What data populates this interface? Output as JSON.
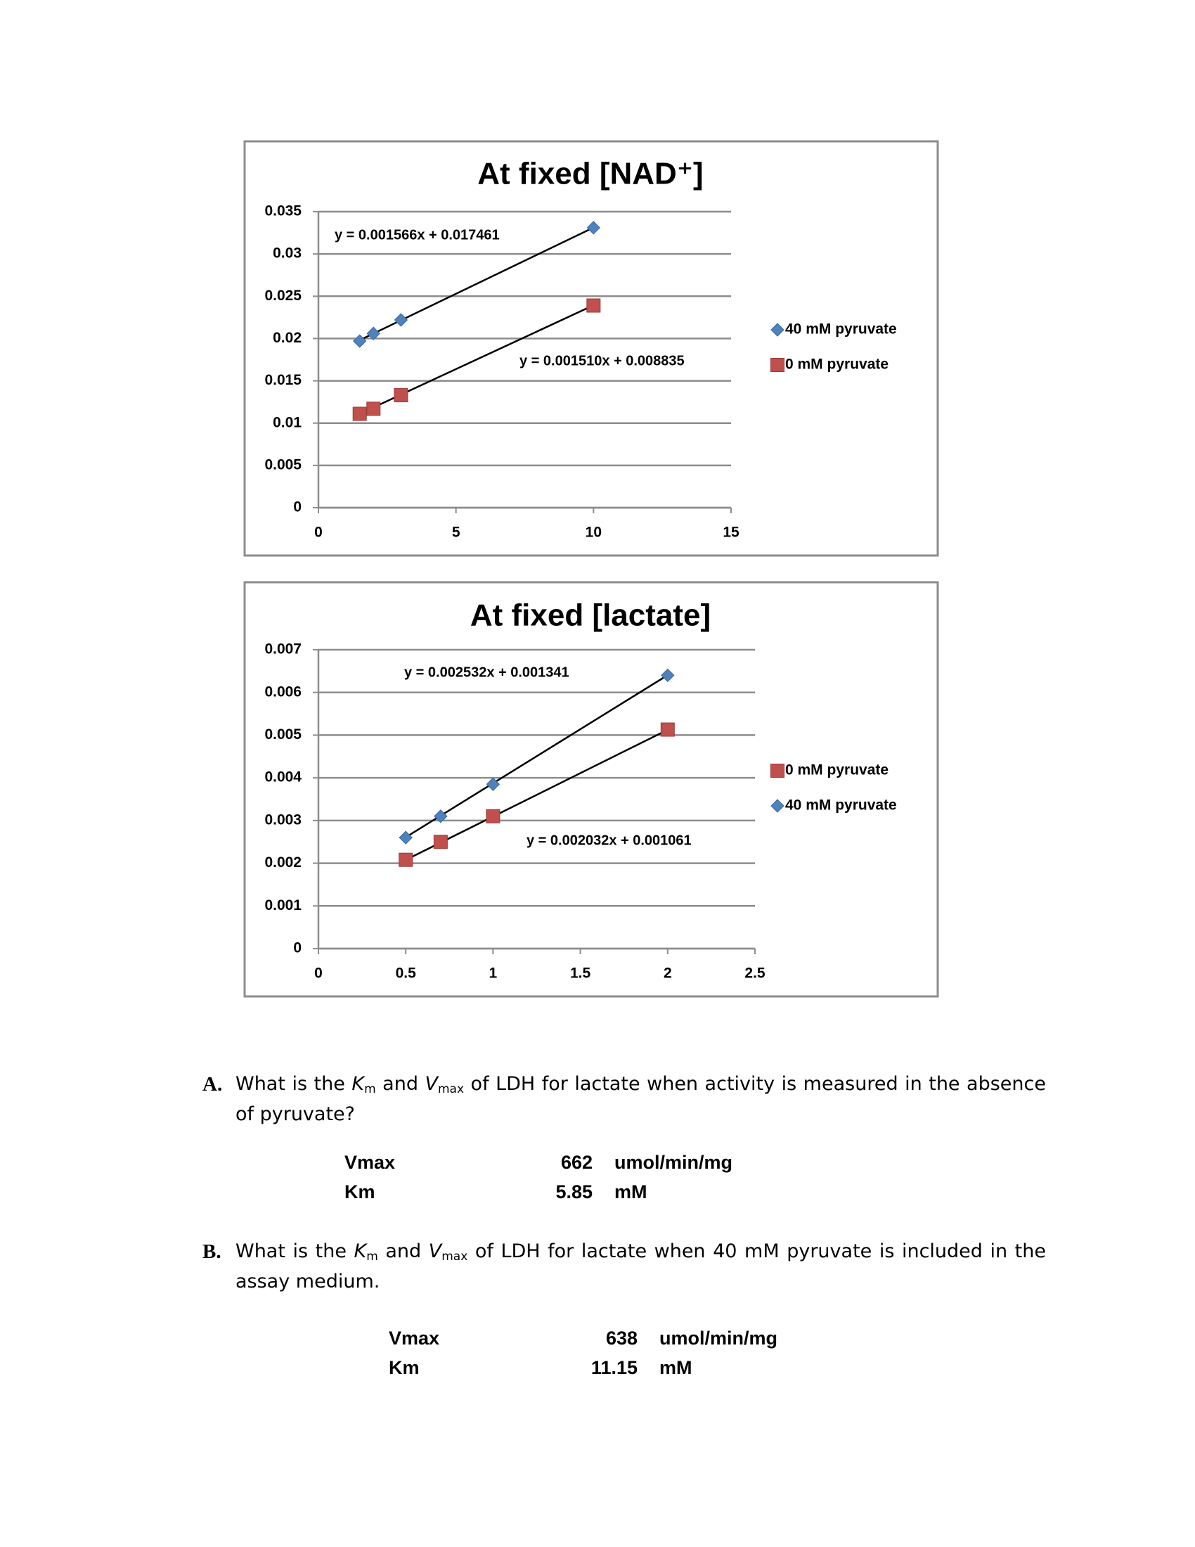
{
  "chart_data": [
    {
      "type": "scatter",
      "title": "At fixed [NAD⁺]",
      "series": [
        {
          "name": "40 mM pyruvate",
          "color": "#4f81bd",
          "marker": "diamond",
          "x": [
            1.5,
            2,
            3,
            10
          ],
          "values": [
            0.0197,
            0.0206,
            0.0222,
            0.0331
          ],
          "trendline": {
            "slope": 0.001566,
            "intercept": 0.017461,
            "label": "y = 0.001566x + 0.017461"
          }
        },
        {
          "name": "0 mM pyruvate",
          "color": "#c0504d",
          "marker": "square",
          "x": [
            1.5,
            2,
            3,
            10
          ],
          "values": [
            0.0111,
            0.0117,
            0.0133,
            0.0239
          ],
          "trendline": {
            "slope": 0.00151,
            "intercept": 0.008835,
            "label": "y = 0.001510x + 0.008835"
          }
        }
      ],
      "xlim": [
        0,
        15
      ],
      "xticks": [
        0,
        5,
        10,
        15
      ],
      "ylim": [
        0,
        0.035
      ],
      "yticks": [
        0,
        0.005,
        0.01,
        0.015,
        0.02,
        0.025,
        0.03,
        0.035
      ],
      "grid": true,
      "legend": "right"
    },
    {
      "type": "scatter",
      "title": "At fixed [lactate]",
      "series": [
        {
          "name": "0 mM pyruvate",
          "color": "#c0504d",
          "marker": "square",
          "x": [
            0.5,
            0.7,
            1,
            2
          ],
          "values": [
            0.00208,
            0.0025,
            0.0031,
            0.00513
          ],
          "trendline": {
            "slope": 0.002032,
            "intercept": 0.001061,
            "label": "y = 0.002032x + 0.001061"
          }
        },
        {
          "name": "40 mM pyruvate",
          "color": "#4f81bd",
          "marker": "diamond",
          "x": [
            0.5,
            0.7,
            1,
            2
          ],
          "values": [
            0.0026,
            0.0031,
            0.00385,
            0.0064
          ],
          "trendline": {
            "slope": 0.002532,
            "intercept": 0.001341,
            "label": "y = 0.002532x + 0.001341"
          }
        }
      ],
      "xlim": [
        0,
        2.5
      ],
      "xticks": [
        0,
        0.5,
        1,
        1.5,
        2,
        2.5
      ],
      "ylim": [
        0,
        0.007
      ],
      "yticks": [
        0,
        0.001,
        0.002,
        0.003,
        0.004,
        0.005,
        0.006,
        0.007
      ],
      "grid": true,
      "legend": "right"
    }
  ],
  "questions": [
    {
      "letter": "A.",
      "text": [
        "What is the ",
        "K",
        "m",
        " and ",
        "V",
        "max",
        " of LDH for lactate when activity is measured in the absence of pyruvate?"
      ],
      "answers": [
        {
          "label": "Vmax",
          "value": 662,
          "unit": "umol/min/mg"
        },
        {
          "label": "Km",
          "value": 5.85,
          "unit": "mM"
        }
      ]
    },
    {
      "letter": "B.",
      "text": [
        "What is the ",
        "K",
        "m",
        " and ",
        "V",
        "max",
        " of LDH for lactate when 40 mM pyruvate is included in the assay medium."
      ],
      "answers": [
        {
          "label": "Vmax",
          "value": 638,
          "unit": "umol/min/mg"
        },
        {
          "label": "Km",
          "value": 11.15,
          "unit": "mM"
        }
      ]
    }
  ]
}
